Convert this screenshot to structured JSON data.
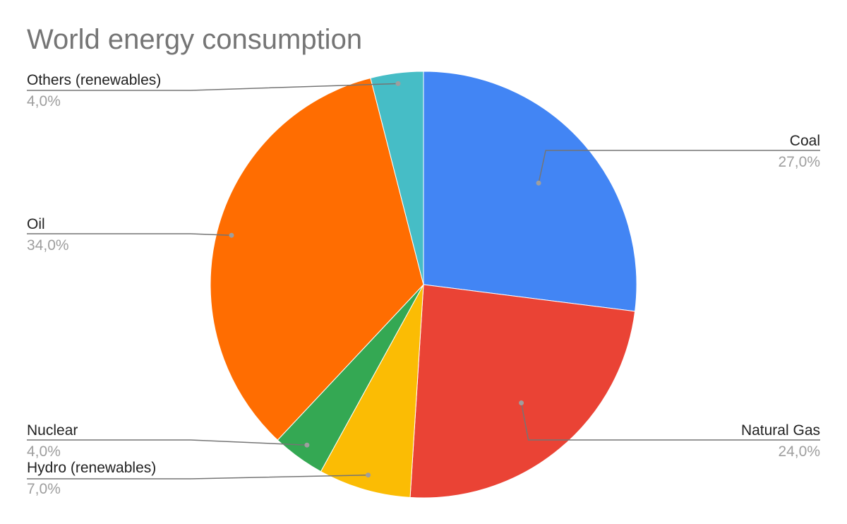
{
  "chart_data": {
    "type": "pie",
    "title": "World energy consumption",
    "slices": [
      {
        "label": "Coal",
        "value": 27.0,
        "display": "27,0%",
        "color": "#4285F4",
        "side": "right"
      },
      {
        "label": "Natural Gas",
        "value": 24.0,
        "display": "24,0%",
        "color": "#EA4335",
        "side": "right"
      },
      {
        "label": "Hydro (renewables)",
        "value": 7.0,
        "display": "7,0%",
        "color": "#FBBC04",
        "side": "left"
      },
      {
        "label": "Nuclear",
        "value": 4.0,
        "display": "4,0%",
        "color": "#34A853",
        "side": "left"
      },
      {
        "label": "Oil",
        "value": 34.0,
        "display": "34,0%",
        "color": "#FF6D01",
        "side": "left"
      },
      {
        "label": "Others (renewables)",
        "value": 4.0,
        "display": "4,0%",
        "color": "#46BDC6",
        "side": "left"
      }
    ],
    "start_angle": "12 o'clock",
    "direction": "clockwise",
    "legend": "none",
    "data_labels": "outside with leader lines"
  }
}
